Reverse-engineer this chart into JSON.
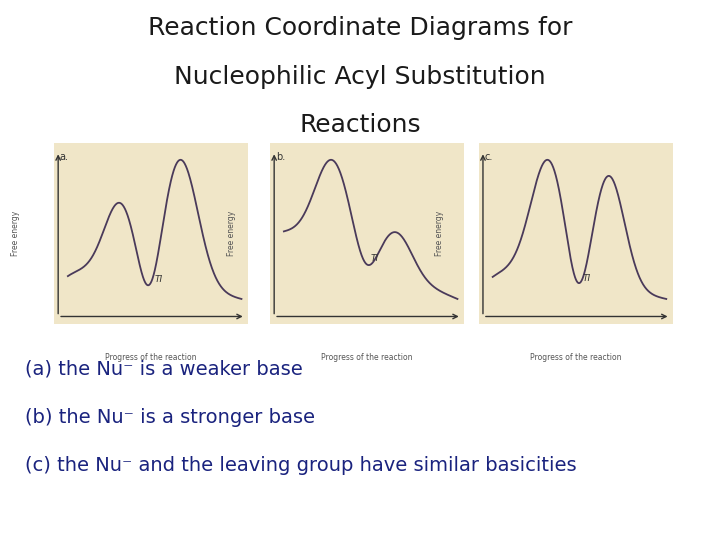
{
  "title_line1": "Reaction Coordinate Diagrams for",
  "title_line2": "Nucleophilic Acyl Substitution",
  "title_line3": "Reactions",
  "title_color": "#1a1a1a",
  "title_fontsize": 18,
  "background_color": "#ffffff",
  "panel_bg_color": "#f0e6c8",
  "curve_color": "#4a3a5a",
  "axis_color": "#333333",
  "label_color": "#555555",
  "panels": [
    "a.",
    "b.",
    "c."
  ],
  "xlabel": "Progress of the reaction",
  "ylabel": "Free energy",
  "caption_lines": [
    "(a) the Nu⁻ is a weaker base",
    "(b) the Nu⁻ is a stronger base",
    "(c) the Nu⁻ and the leaving group have similar basicities"
  ],
  "caption_fontsize": 14,
  "caption_color": "#1a237e"
}
